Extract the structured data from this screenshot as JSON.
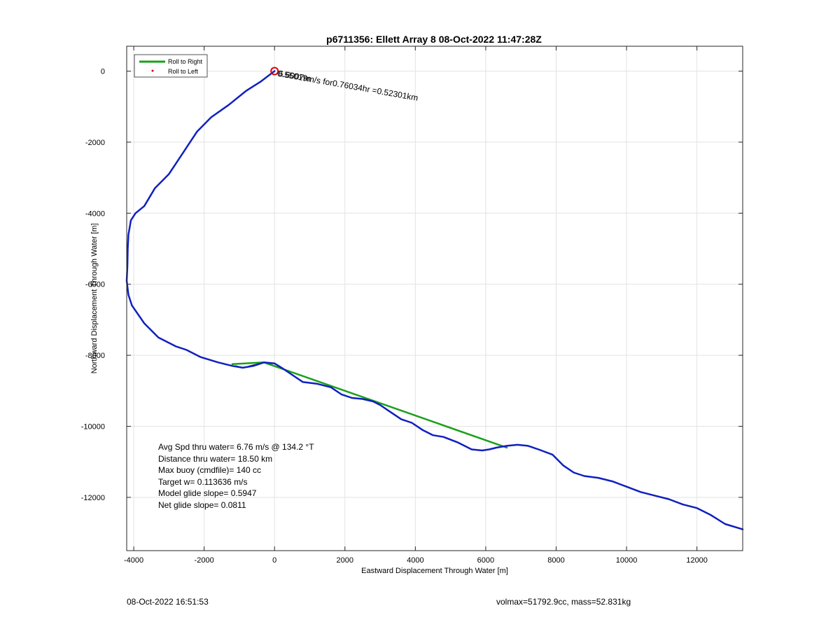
{
  "chart_data": {
    "type": "line",
    "title": "p6711356: Ellett Array 8 08-Oct-2022 11:47:28Z",
    "xlabel": "Eastward Displacement Through Water [m]",
    "ylabel": "Northward Displacement Through Water [m]",
    "xlim": [
      -4200,
      13300
    ],
    "ylim": [
      -13500,
      700
    ],
    "xticks": [
      -4000,
      -2000,
      0,
      2000,
      4000,
      6000,
      8000,
      10000,
      12000
    ],
    "yticks": [
      0,
      -2000,
      -4000,
      -6000,
      -8000,
      -10000,
      -12000
    ],
    "xtick_labels": [
      "-4000",
      "-2000",
      "0",
      "2000",
      "4000",
      "6000",
      "8000",
      "10000",
      "12000"
    ],
    "ytick_labels": [
      "0",
      "-2000",
      "-4000",
      "-6000",
      "-8000",
      "-10000",
      "-12000"
    ],
    "grid": true,
    "legend_position": "top-left",
    "legend": [
      {
        "label": "Roll to Right",
        "color": "#1aa01a",
        "style": "line"
      },
      {
        "label": "Roll to Left",
        "color": "#e00000",
        "style": "dot"
      }
    ],
    "series": [
      {
        "color": "#1aa01a",
        "x": [
          -1200,
          -300,
          6600
        ],
        "y": [
          -8250,
          -8200,
          -10600
        ]
      },
      {
        "color": "#111111",
        "x": [
          -1100,
          -900,
          -700,
          -500,
          -300
        ],
        "y": [
          -8300,
          -8350,
          -8300,
          -8250,
          -8200
        ]
      },
      {
        "color": "#1020c0",
        "x": [
          0,
          -400,
          -800,
          -1300,
          -1800,
          -2200,
          -2600,
          -3000,
          -3400,
          -3700,
          -3950,
          -4080,
          -4150,
          -4170,
          -4180,
          -4200,
          -4150,
          -4050,
          -3700,
          -3300,
          -2800,
          -2500,
          -2100,
          -1600,
          -1200,
          -900,
          -600,
          -300,
          0,
          200,
          500,
          800,
          1200,
          1600,
          1900,
          2200,
          2500,
          2800,
          3000,
          3300,
          3600,
          3900,
          4200,
          4500,
          4800,
          5200,
          5600,
          5900,
          6100,
          6300,
          6600,
          6900,
          7200,
          7500,
          7900,
          8200,
          8500,
          8800,
          9200,
          9600,
          10000,
          10400,
          10800,
          11200,
          11600,
          12000,
          12400,
          12800,
          13300
        ],
        "y": [
          0,
          -300,
          -550,
          -950,
          -1300,
          -1700,
          -2300,
          -2900,
          -3300,
          -3800,
          -4000,
          -4200,
          -4600,
          -5000,
          -5500,
          -5900,
          -6300,
          -6600,
          -7100,
          -7500,
          -7750,
          -7850,
          -8050,
          -8200,
          -8300,
          -8350,
          -8300,
          -8200,
          -8230,
          -8350,
          -8550,
          -8750,
          -8800,
          -8900,
          -9100,
          -9200,
          -9230,
          -9300,
          -9400,
          -9600,
          -9800,
          -9900,
          -10100,
          -10250,
          -10300,
          -10450,
          -10650,
          -10680,
          -10650,
          -10600,
          -10550,
          -10520,
          -10550,
          -10650,
          -10800,
          -11100,
          -11300,
          -11400,
          -11450,
          -11550,
          -11700,
          -11850,
          -11950,
          -12050,
          -12200,
          -12300,
          -12500,
          -12750,
          -12900
        ]
      }
    ],
    "annotations": [
      {
        "text": "0.55019m/s for0.76034hr =0.52301km",
        "x": 30,
        "y": -20,
        "rotation_deg": 10
      },
      {
        "text": "6.6007m",
        "x": 60,
        "y": -20,
        "rotation_deg": 10
      }
    ],
    "start_marker": {
      "x": 0,
      "y": 0,
      "color": "#e00000"
    }
  },
  "stats": [
    "Avg Spd thru water=  6.76 m/s @ 134.2 °T",
    "Distance thru water= 18.50 km",
    "Max buoy (cmdfile)= 140 cc",
    "Target w= 0.113636 m/s",
    "Model glide slope= 0.5947",
    "Net glide slope= 0.0811"
  ],
  "footer": {
    "left": "08-Oct-2022 16:51:53",
    "right": "volmax=51792.9cc, mass=52.831kg"
  }
}
